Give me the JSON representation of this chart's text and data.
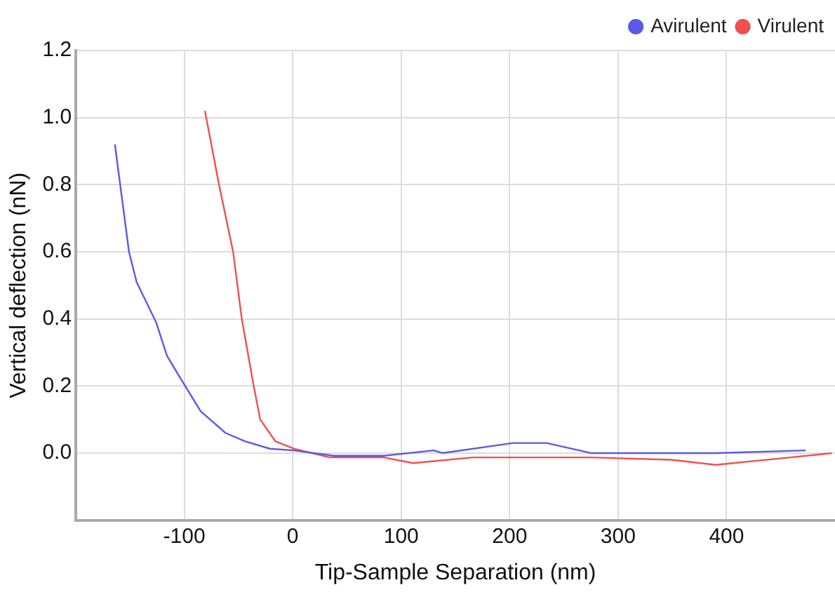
{
  "chart_data": {
    "type": "line",
    "xlabel": "Tip-Sample Separation (nm)",
    "ylabel": "Vertical deflection (nN)",
    "xlim": [
      -200,
      500
    ],
    "xticks": [
      -100,
      0,
      100,
      200,
      300,
      400
    ],
    "ylim": [
      -0.2,
      1.2
    ],
    "yticks": [
      {
        "value": 0,
        "label": "0.0"
      },
      {
        "value": 0.2,
        "label": "0.2"
      },
      {
        "value": 0.4,
        "label": "0.4"
      },
      {
        "value": 0.6,
        "label": "0.6"
      },
      {
        "value": 0.8,
        "label": "0.8"
      },
      {
        "value": 1,
        "label": "1.0"
      },
      {
        "value": 1.2,
        "label": "1.2"
      }
    ],
    "grid": true,
    "legend": "top right",
    "marker": "none",
    "line_style": "solid",
    "series": [
      {
        "name": "Avirulent",
        "color": "#5a5ae6",
        "x": [
          -164,
          -151,
          -144,
          -126,
          -116,
          -103,
          -85,
          -62,
          -44,
          -21,
          1,
          38,
          84,
          130,
          138,
          203,
          234,
          275,
          322,
          390,
          473
        ],
        "values": [
          0.92,
          0.6,
          0.51,
          0.39,
          0.29,
          0.22,
          0.125,
          0.06,
          0.035,
          0.013,
          0.008,
          -0.008,
          -0.008,
          0.008,
          0,
          0.03,
          0.03,
          0,
          0,
          0,
          0.008
        ]
      },
      {
        "name": "Virulent",
        "color": "#f05050",
        "x": [
          -81,
          -68,
          -55,
          -47,
          -36,
          -30,
          -16,
          1,
          34,
          84,
          111,
          166,
          192,
          275,
          349,
          390,
          459,
          497
        ],
        "values": [
          1.02,
          0.8,
          0.6,
          0.4,
          0.2,
          0.1,
          0.035,
          0.013,
          -0.013,
          -0.013,
          -0.03,
          -0.013,
          -0.013,
          -0.013,
          -0.02,
          -0.035,
          -0.013,
          0
        ]
      }
    ]
  }
}
